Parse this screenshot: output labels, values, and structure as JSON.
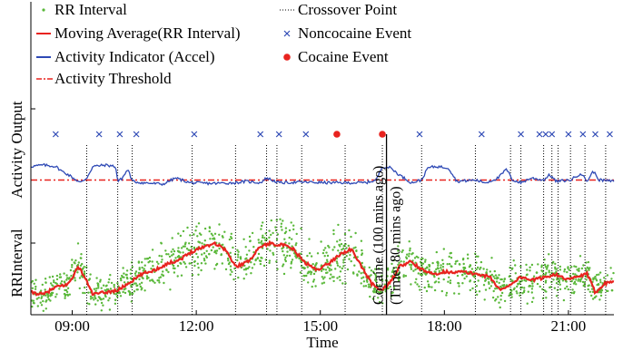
{
  "chart_data": {
    "type": "line",
    "xlabel": "Time",
    "ylabels": [
      "RRInterval",
      "Activity  Output"
    ],
    "xlim": [
      8.0,
      22.1
    ],
    "xticks": [
      {
        "value": 9,
        "label": "09:00"
      },
      {
        "value": 12,
        "label": "12:00"
      },
      {
        "value": 15,
        "label": "15:00"
      },
      {
        "value": 18,
        "label": "18:00"
      },
      {
        "value": 21,
        "label": "21:00"
      }
    ],
    "legend": {
      "placement": "top-left",
      "entries": [
        {
          "key": "rr",
          "label": "RR Interval",
          "color": "#5ab83a",
          "style": "dot"
        },
        {
          "key": "cross",
          "label": "Crossover Point",
          "color": "#000000",
          "style": "dotted-line"
        },
        {
          "key": "ma",
          "label": "Moving Average(RR Interval)",
          "color": "#e8231f",
          "style": "line"
        },
        {
          "key": "nonc",
          "label": "Noncocaine Event",
          "color": "#2e49b5",
          "style": "x"
        },
        {
          "key": "act",
          "label": "Activity Indicator (Accel)",
          "color": "#2e49b5",
          "style": "line"
        },
        {
          "key": "coc",
          "label": "Cocaine Event",
          "color": "#e8231f",
          "style": "filled-dot"
        },
        {
          "key": "thr",
          "label": "Activity Threshold",
          "color": "#e8231f",
          "style": "dashdot"
        }
      ]
    },
    "annotation": {
      "x": 16.6,
      "lines": [
        "Cocaine (100 mins ago)",
        "(Time: 80 mins ago)"
      ]
    },
    "crossover_points": [
      9.35,
      10.1,
      10.45,
      11.9,
      12.95,
      13.7,
      13.95,
      14.55,
      15.6,
      16.5,
      17.45,
      18.75,
      19.6,
      19.85,
      20.4,
      20.6,
      20.75,
      21.05,
      21.4,
      21.9
    ],
    "noncocaine_events": [
      8.6,
      9.65,
      10.15,
      10.55,
      11.95,
      13.55,
      14.0,
      14.65,
      17.4,
      18.9,
      19.85,
      20.3,
      20.45,
      20.6,
      21.0,
      21.35,
      21.65,
      22.0
    ],
    "cocaine_events": [
      15.4,
      16.5
    ],
    "activity_threshold": 0.42,
    "activity": [
      [
        8.0,
        0.62
      ],
      [
        8.3,
        0.64
      ],
      [
        8.6,
        0.62
      ],
      [
        8.75,
        0.55
      ],
      [
        8.9,
        0.5
      ],
      [
        9.2,
        0.38
      ],
      [
        9.35,
        0.45
      ],
      [
        9.5,
        0.62
      ],
      [
        9.8,
        0.64
      ],
      [
        10.05,
        0.62
      ],
      [
        10.1,
        0.4
      ],
      [
        10.2,
        0.44
      ],
      [
        10.35,
        0.58
      ],
      [
        10.45,
        0.4
      ],
      [
        10.7,
        0.38
      ],
      [
        11.2,
        0.36
      ],
      [
        11.5,
        0.45
      ],
      [
        11.85,
        0.38
      ],
      [
        12.4,
        0.37
      ],
      [
        12.95,
        0.38
      ],
      [
        13.2,
        0.4
      ],
      [
        13.55,
        0.38
      ],
      [
        13.7,
        0.45
      ],
      [
        14.0,
        0.38
      ],
      [
        14.6,
        0.39
      ],
      [
        15.2,
        0.38
      ],
      [
        15.6,
        0.38
      ],
      [
        16.1,
        0.38
      ],
      [
        16.35,
        0.42
      ],
      [
        16.5,
        0.62
      ],
      [
        16.7,
        0.6
      ],
      [
        16.9,
        0.5
      ],
      [
        17.2,
        0.38
      ],
      [
        17.45,
        0.42
      ],
      [
        17.6,
        0.6
      ],
      [
        17.8,
        0.62
      ],
      [
        18.1,
        0.6
      ],
      [
        18.3,
        0.4
      ],
      [
        18.75,
        0.42
      ],
      [
        19.0,
        0.38
      ],
      [
        19.3,
        0.45
      ],
      [
        19.5,
        0.58
      ],
      [
        19.65,
        0.42
      ],
      [
        19.85,
        0.38
      ],
      [
        20.1,
        0.45
      ],
      [
        20.4,
        0.42
      ],
      [
        20.55,
        0.5
      ],
      [
        20.7,
        0.4
      ],
      [
        21.05,
        0.42
      ],
      [
        21.3,
        0.52
      ],
      [
        21.45,
        0.4
      ],
      [
        21.6,
        0.55
      ],
      [
        21.75,
        0.42
      ],
      [
        22.1,
        0.4
      ]
    ],
    "rr_moving_average": [
      [
        8.0,
        0.2
      ],
      [
        8.3,
        0.18
      ],
      [
        8.6,
        0.25
      ],
      [
        8.9,
        0.28
      ],
      [
        9.15,
        0.45
      ],
      [
        9.3,
        0.35
      ],
      [
        9.5,
        0.18
      ],
      [
        9.8,
        0.2
      ],
      [
        10.1,
        0.22
      ],
      [
        10.4,
        0.3
      ],
      [
        10.7,
        0.38
      ],
      [
        11.0,
        0.42
      ],
      [
        11.3,
        0.48
      ],
      [
        11.6,
        0.52
      ],
      [
        11.9,
        0.6
      ],
      [
        12.2,
        0.65
      ],
      [
        12.45,
        0.68
      ],
      [
        12.7,
        0.62
      ],
      [
        12.95,
        0.45
      ],
      [
        13.25,
        0.5
      ],
      [
        13.55,
        0.65
      ],
      [
        13.8,
        0.68
      ],
      [
        14.1,
        0.66
      ],
      [
        14.35,
        0.62
      ],
      [
        14.6,
        0.5
      ],
      [
        14.9,
        0.42
      ],
      [
        15.2,
        0.48
      ],
      [
        15.5,
        0.58
      ],
      [
        15.75,
        0.62
      ],
      [
        16.0,
        0.45
      ],
      [
        16.25,
        0.28
      ],
      [
        16.5,
        0.22
      ],
      [
        16.7,
        0.3
      ],
      [
        16.9,
        0.45
      ],
      [
        17.2,
        0.5
      ],
      [
        17.45,
        0.42
      ],
      [
        17.7,
        0.38
      ],
      [
        18.0,
        0.4
      ],
      [
        18.4,
        0.4
      ],
      [
        18.8,
        0.38
      ],
      [
        19.1,
        0.35
      ],
      [
        19.35,
        0.22
      ],
      [
        19.6,
        0.28
      ],
      [
        19.85,
        0.35
      ],
      [
        20.15,
        0.32
      ],
      [
        20.45,
        0.35
      ],
      [
        20.7,
        0.38
      ],
      [
        20.95,
        0.32
      ],
      [
        21.2,
        0.35
      ],
      [
        21.45,
        0.38
      ],
      [
        21.65,
        0.2
      ],
      [
        21.85,
        0.28
      ],
      [
        22.1,
        0.32
      ]
    ]
  }
}
